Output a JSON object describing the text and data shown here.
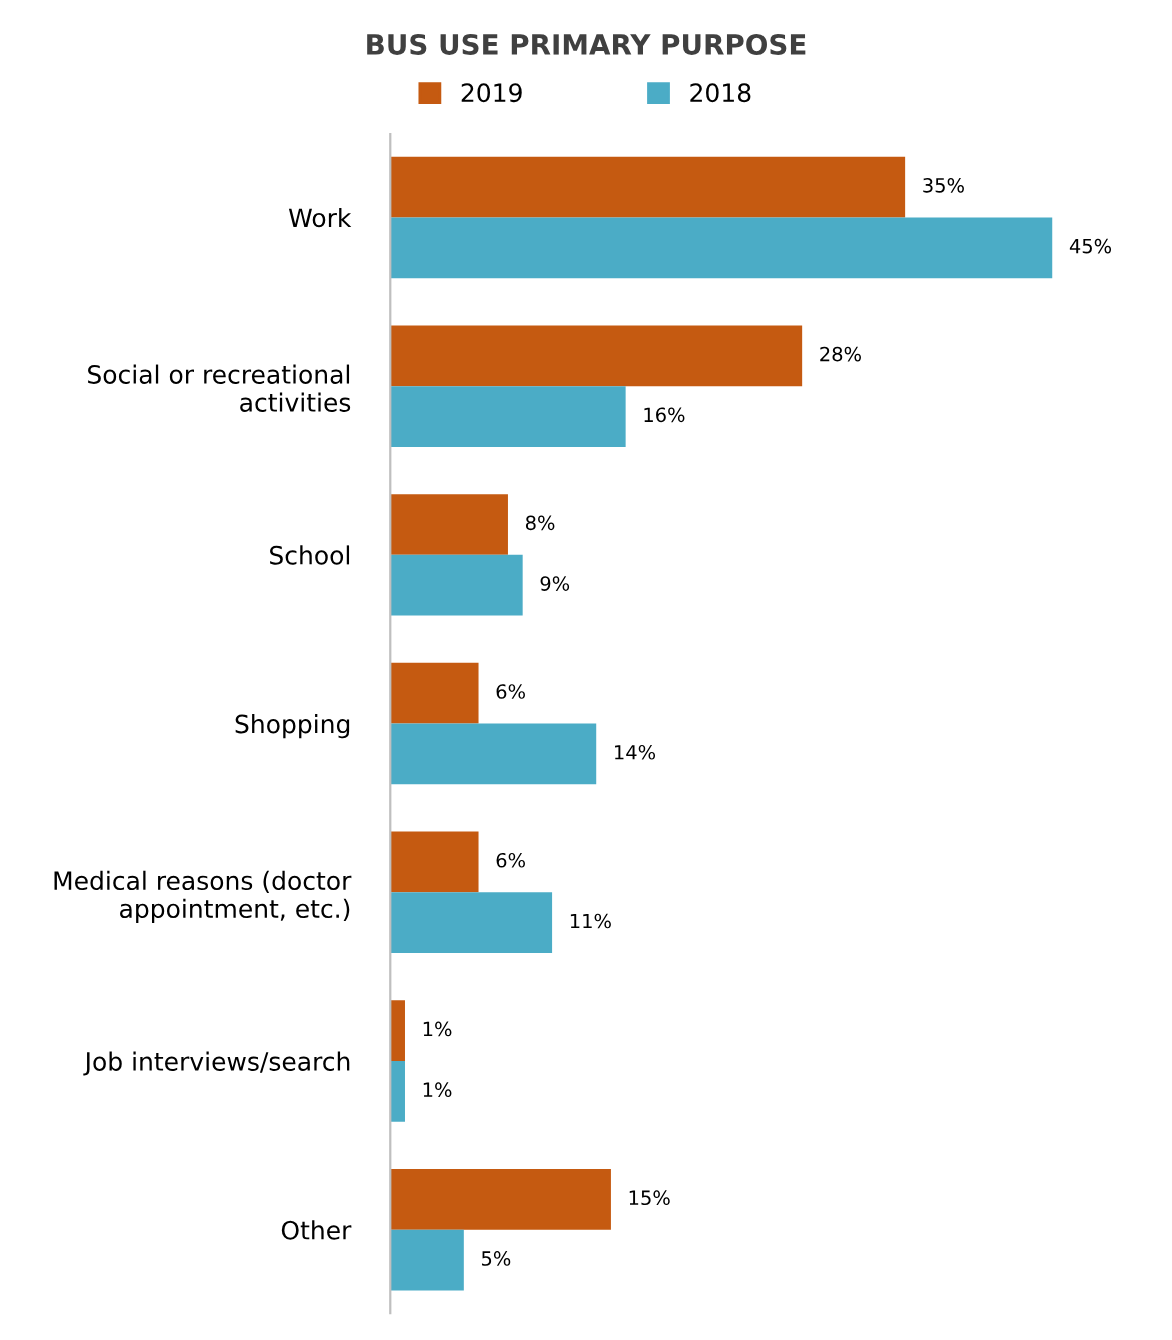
{
  "chart_data": {
    "type": "bar",
    "orientation": "horizontal",
    "title": "BUS USE PRIMARY PURPOSE",
    "categories": [
      "Work",
      "Social or recreational activities",
      "School",
      "Shopping",
      "Medical reasons (doctor appointment, etc.)",
      "Job interviews/search",
      "Other"
    ],
    "series": [
      {
        "name": "2019",
        "color": "#c55a11",
        "values": [
          35,
          28,
          8,
          6,
          6,
          1,
          15
        ],
        "value_labels": [
          "35%",
          "28%",
          "8%",
          "6%",
          "6%",
          "1%",
          "15%"
        ]
      },
      {
        "name": "2018",
        "color": "#4bacc6",
        "values": [
          45,
          16,
          9,
          14,
          11,
          1,
          5
        ],
        "value_labels": [
          "45%",
          "16%",
          "9%",
          "14%",
          "11%",
          "1%",
          "5%"
        ]
      }
    ],
    "legend": "top",
    "grid": false
  }
}
